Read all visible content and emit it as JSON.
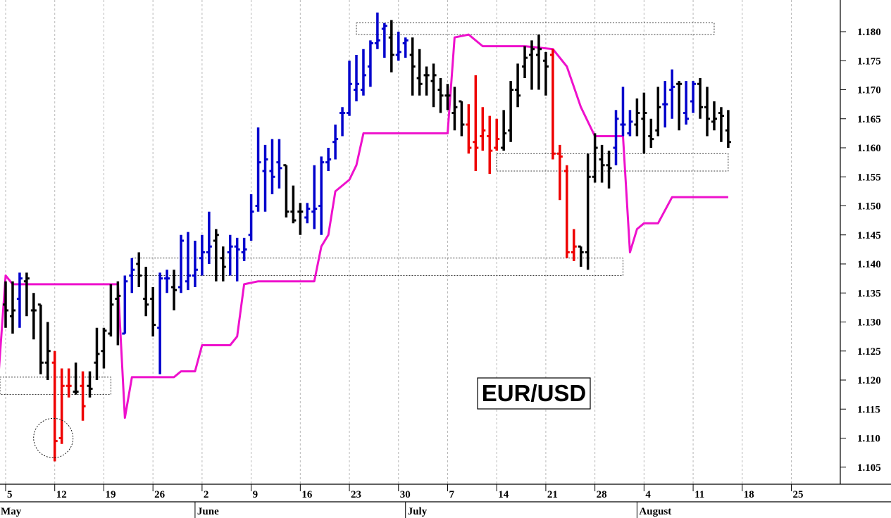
{
  "chart_data": {
    "type": "ohlc-bar",
    "title": "EUR/USD",
    "ylim": [
      1.1015,
      1.1845
    ],
    "y_ticks": [
      1.105,
      1.11,
      1.115,
      1.12,
      1.125,
      1.13,
      1.135,
      1.14,
      1.145,
      1.15,
      1.155,
      1.16,
      1.165,
      1.17,
      1.175,
      1.18
    ],
    "y_tick_labels": [
      "1.105",
      "1.110",
      "1.115",
      "1.120",
      "1.125",
      "1.130",
      "1.135",
      "1.140",
      "1.145",
      "1.150",
      "1.155",
      "1.160",
      "1.165",
      "1.170",
      "1.175",
      "1.180"
    ],
    "x_ticks": [
      {
        "label": "5",
        "day": 0
      },
      {
        "label": "12",
        "day": 7
      },
      {
        "label": "19",
        "day": 14
      },
      {
        "label": "26",
        "day": 21
      },
      {
        "label": "2",
        "day": 28
      },
      {
        "label": "9",
        "day": 35
      },
      {
        "label": "16",
        "day": 42
      },
      {
        "label": "23",
        "day": 49
      },
      {
        "label": "30",
        "day": 56
      },
      {
        "label": "7",
        "day": 63
      },
      {
        "label": "14",
        "day": 70
      },
      {
        "label": "21",
        "day": 77
      },
      {
        "label": "28",
        "day": 84
      },
      {
        "label": "4",
        "day": 91
      },
      {
        "label": "11",
        "day": 98
      },
      {
        "label": "18",
        "day": 105
      },
      {
        "label": "25",
        "day": 112
      }
    ],
    "months": [
      {
        "label": "May",
        "day": -1
      },
      {
        "label": "June",
        "day": 27
      },
      {
        "label": "July",
        "day": 57
      },
      {
        "label": "August",
        "day": 90
      }
    ],
    "colors": {
      "up": "#0000cc",
      "down": "#ee0000",
      "neutral": "#000000",
      "stop_line": "#ee11cc"
    },
    "bars": [
      {
        "day": 0,
        "o": 1.133,
        "h": 1.137,
        "l": 1.129,
        "c": 1.132,
        "color": "neutral"
      },
      {
        "day": 1,
        "o": 1.131,
        "h": 1.137,
        "l": 1.128,
        "c": 1.132,
        "color": "neutral"
      },
      {
        "day": 2,
        "o": 1.134,
        "h": 1.1385,
        "l": 1.129,
        "c": 1.1375,
        "color": "up"
      },
      {
        "day": 3,
        "o": 1.137,
        "h": 1.1385,
        "l": 1.131,
        "c": 1.1375,
        "color": "neutral"
      },
      {
        "day": 4,
        "o": 1.132,
        "h": 1.135,
        "l": 1.127,
        "c": 1.132,
        "color": "neutral"
      },
      {
        "day": 5,
        "o": 1.133,
        "h": 1.133,
        "l": 1.121,
        "c": 1.123,
        "color": "neutral"
      },
      {
        "day": 6,
        "o": 1.123,
        "h": 1.13,
        "l": 1.12,
        "c": 1.125,
        "color": "neutral"
      },
      {
        "day": 7,
        "o": 1.123,
        "h": 1.125,
        "l": 1.106,
        "c": 1.1095,
        "color": "down"
      },
      {
        "day": 8,
        "o": 1.11,
        "h": 1.122,
        "l": 1.109,
        "c": 1.119,
        "color": "down"
      },
      {
        "day": 9,
        "o": 1.119,
        "h": 1.122,
        "l": 1.117,
        "c": 1.119,
        "color": "down"
      },
      {
        "day": 10,
        "o": 1.118,
        "h": 1.123,
        "l": 1.1175,
        "c": 1.118,
        "color": "neutral"
      },
      {
        "day": 11,
        "o": 1.119,
        "h": 1.1215,
        "l": 1.113,
        "c": 1.1155,
        "color": "down"
      },
      {
        "day": 12,
        "o": 1.119,
        "h": 1.1215,
        "l": 1.117,
        "c": 1.1185,
        "color": "neutral"
      },
      {
        "day": 13,
        "o": 1.123,
        "h": 1.129,
        "l": 1.12,
        "c": 1.1245,
        "color": "neutral"
      },
      {
        "day": 14,
        "o": 1.125,
        "h": 1.129,
        "l": 1.122,
        "c": 1.1285,
        "color": "neutral"
      },
      {
        "day": 15,
        "o": 1.128,
        "h": 1.1365,
        "l": 1.1275,
        "c": 1.133,
        "color": "neutral"
      },
      {
        "day": 16,
        "o": 1.134,
        "h": 1.137,
        "l": 1.126,
        "c": 1.1345,
        "color": "neutral"
      },
      {
        "day": 17,
        "o": 1.128,
        "h": 1.138,
        "l": 1.128,
        "c": 1.137,
        "color": "up"
      },
      {
        "day": 18,
        "o": 1.138,
        "h": 1.141,
        "l": 1.135,
        "c": 1.139,
        "color": "up"
      },
      {
        "day": 19,
        "o": 1.14,
        "h": 1.142,
        "l": 1.136,
        "c": 1.138,
        "color": "neutral"
      },
      {
        "day": 20,
        "o": 1.134,
        "h": 1.1395,
        "l": 1.131,
        "c": 1.133,
        "color": "neutral"
      },
      {
        "day": 21,
        "o": 1.134,
        "h": 1.136,
        "l": 1.1275,
        "c": 1.1295,
        "color": "neutral"
      },
      {
        "day": 22,
        "o": 1.129,
        "h": 1.1385,
        "l": 1.121,
        "c": 1.1375,
        "color": "up"
      },
      {
        "day": 23,
        "o": 1.1375,
        "h": 1.139,
        "l": 1.135,
        "c": 1.1375,
        "color": "up"
      },
      {
        "day": 24,
        "o": 1.136,
        "h": 1.139,
        "l": 1.132,
        "c": 1.1355,
        "color": "neutral"
      },
      {
        "day": 25,
        "o": 1.136,
        "h": 1.145,
        "l": 1.135,
        "c": 1.144,
        "color": "up"
      },
      {
        "day": 26,
        "o": 1.137,
        "h": 1.1455,
        "l": 1.1355,
        "c": 1.138,
        "color": "up"
      },
      {
        "day": 27,
        "o": 1.138,
        "h": 1.144,
        "l": 1.136,
        "c": 1.139,
        "color": "up"
      },
      {
        "day": 28,
        "o": 1.141,
        "h": 1.145,
        "l": 1.138,
        "c": 1.142,
        "color": "up"
      },
      {
        "day": 29,
        "o": 1.142,
        "h": 1.149,
        "l": 1.14,
        "c": 1.143,
        "color": "up"
      },
      {
        "day": 30,
        "o": 1.144,
        "h": 1.146,
        "l": 1.137,
        "c": 1.145,
        "color": "neutral"
      },
      {
        "day": 31,
        "o": 1.141,
        "h": 1.143,
        "l": 1.137,
        "c": 1.1395,
        "color": "neutral"
      },
      {
        "day": 32,
        "o": 1.142,
        "h": 1.145,
        "l": 1.138,
        "c": 1.143,
        "color": "up"
      },
      {
        "day": 33,
        "o": 1.143,
        "h": 1.1445,
        "l": 1.137,
        "c": 1.1425,
        "color": "up"
      },
      {
        "day": 34,
        "o": 1.142,
        "h": 1.1445,
        "l": 1.1405,
        "c": 1.1425,
        "color": "up"
      },
      {
        "day": 35,
        "o": 1.145,
        "h": 1.152,
        "l": 1.144,
        "c": 1.149,
        "color": "up"
      },
      {
        "day": 36,
        "o": 1.15,
        "h": 1.1635,
        "l": 1.149,
        "c": 1.1575,
        "color": "up"
      },
      {
        "day": 37,
        "o": 1.156,
        "h": 1.1605,
        "l": 1.149,
        "c": 1.158,
        "color": "up"
      },
      {
        "day": 38,
        "o": 1.156,
        "h": 1.1615,
        "l": 1.152,
        "c": 1.155,
        "color": "up"
      },
      {
        "day": 39,
        "o": 1.1575,
        "h": 1.1615,
        "l": 1.153,
        "c": 1.1565,
        "color": "up"
      },
      {
        "day": 40,
        "o": 1.157,
        "h": 1.157,
        "l": 1.148,
        "c": 1.149,
        "color": "neutral"
      },
      {
        "day": 41,
        "o": 1.149,
        "h": 1.1535,
        "l": 1.147,
        "c": 1.1475,
        "color": "neutral"
      },
      {
        "day": 42,
        "o": 1.149,
        "h": 1.1505,
        "l": 1.145,
        "c": 1.149,
        "color": "neutral"
      },
      {
        "day": 43,
        "o": 1.148,
        "h": 1.1505,
        "l": 1.147,
        "c": 1.1495,
        "color": "up"
      },
      {
        "day": 44,
        "o": 1.149,
        "h": 1.157,
        "l": 1.146,
        "c": 1.1495,
        "color": "up"
      },
      {
        "day": 45,
        "o": 1.15,
        "h": 1.1585,
        "l": 1.145,
        "c": 1.1575,
        "color": "up"
      },
      {
        "day": 46,
        "o": 1.1575,
        "h": 1.16,
        "l": 1.156,
        "c": 1.158,
        "color": "up"
      },
      {
        "day": 47,
        "o": 1.161,
        "h": 1.164,
        "l": 1.158,
        "c": 1.1615,
        "color": "up"
      },
      {
        "day": 48,
        "o": 1.166,
        "h": 1.167,
        "l": 1.162,
        "c": 1.166,
        "color": "up"
      },
      {
        "day": 49,
        "o": 1.166,
        "h": 1.175,
        "l": 1.1655,
        "c": 1.171,
        "color": "up"
      },
      {
        "day": 50,
        "o": 1.17,
        "h": 1.176,
        "l": 1.168,
        "c": 1.171,
        "color": "up"
      },
      {
        "day": 51,
        "o": 1.17,
        "h": 1.177,
        "l": 1.169,
        "c": 1.1725,
        "color": "up"
      },
      {
        "day": 52,
        "o": 1.174,
        "h": 1.1785,
        "l": 1.1705,
        "c": 1.178,
        "color": "up"
      },
      {
        "day": 53,
        "o": 1.178,
        "h": 1.1833,
        "l": 1.177,
        "c": 1.1785,
        "color": "up"
      },
      {
        "day": 54,
        "o": 1.1805,
        "h": 1.1815,
        "l": 1.1755,
        "c": 1.181,
        "color": "up"
      },
      {
        "day": 55,
        "o": 1.179,
        "h": 1.182,
        "l": 1.173,
        "c": 1.176,
        "color": "neutral"
      },
      {
        "day": 56,
        "o": 1.176,
        "h": 1.18,
        "l": 1.175,
        "c": 1.1765,
        "color": "up"
      },
      {
        "day": 57,
        "o": 1.178,
        "h": 1.179,
        "l": 1.1755,
        "c": 1.1785,
        "color": "up"
      },
      {
        "day": 58,
        "o": 1.176,
        "h": 1.179,
        "l": 1.169,
        "c": 1.174,
        "color": "neutral"
      },
      {
        "day": 59,
        "o": 1.172,
        "h": 1.177,
        "l": 1.169,
        "c": 1.171,
        "color": "neutral"
      },
      {
        "day": 60,
        "o": 1.1725,
        "h": 1.174,
        "l": 1.169,
        "c": 1.1725,
        "color": "neutral"
      },
      {
        "day": 61,
        "o": 1.1715,
        "h": 1.1745,
        "l": 1.167,
        "c": 1.1725,
        "color": "neutral"
      },
      {
        "day": 62,
        "o": 1.17,
        "h": 1.172,
        "l": 1.166,
        "c": 1.169,
        "color": "neutral"
      },
      {
        "day": 63,
        "o": 1.169,
        "h": 1.171,
        "l": 1.1665,
        "c": 1.169,
        "color": "neutral"
      },
      {
        "day": 64,
        "o": 1.166,
        "h": 1.1705,
        "l": 1.163,
        "c": 1.167,
        "color": "neutral"
      },
      {
        "day": 65,
        "o": 1.168,
        "h": 1.168,
        "l": 1.162,
        "c": 1.164,
        "color": "neutral"
      },
      {
        "day": 66,
        "o": 1.164,
        "h": 1.1675,
        "l": 1.159,
        "c": 1.16,
        "color": "down"
      },
      {
        "day": 67,
        "o": 1.161,
        "h": 1.1725,
        "l": 1.156,
        "c": 1.16,
        "color": "down"
      },
      {
        "day": 68,
        "o": 1.162,
        "h": 1.167,
        "l": 1.1595,
        "c": 1.163,
        "color": "down"
      },
      {
        "day": 69,
        "o": 1.162,
        "h": 1.1655,
        "l": 1.1555,
        "c": 1.1595,
        "color": "down"
      },
      {
        "day": 70,
        "o": 1.16,
        "h": 1.165,
        "l": 1.1595,
        "c": 1.1615,
        "color": "down"
      },
      {
        "day": 71,
        "o": 1.16,
        "h": 1.1665,
        "l": 1.1595,
        "c": 1.1625,
        "color": "neutral"
      },
      {
        "day": 72,
        "o": 1.163,
        "h": 1.1715,
        "l": 1.161,
        "c": 1.17,
        "color": "neutral"
      },
      {
        "day": 73,
        "o": 1.17,
        "h": 1.1745,
        "l": 1.167,
        "c": 1.169,
        "color": "neutral"
      },
      {
        "day": 74,
        "o": 1.174,
        "h": 1.1775,
        "l": 1.172,
        "c": 1.1755,
        "color": "neutral"
      },
      {
        "day": 75,
        "o": 1.176,
        "h": 1.1785,
        "l": 1.17,
        "c": 1.177,
        "color": "neutral"
      },
      {
        "day": 76,
        "o": 1.176,
        "h": 1.1795,
        "l": 1.17,
        "c": 1.177,
        "color": "neutral"
      },
      {
        "day": 77,
        "o": 1.175,
        "h": 1.1765,
        "l": 1.169,
        "c": 1.174,
        "color": "neutral"
      },
      {
        "day": 78,
        "o": 1.176,
        "h": 1.177,
        "l": 1.158,
        "c": 1.159,
        "color": "down"
      },
      {
        "day": 79,
        "o": 1.159,
        "h": 1.1605,
        "l": 1.151,
        "c": 1.1585,
        "color": "down"
      },
      {
        "day": 80,
        "o": 1.156,
        "h": 1.157,
        "l": 1.141,
        "c": 1.142,
        "color": "down"
      },
      {
        "day": 81,
        "o": 1.142,
        "h": 1.146,
        "l": 1.1405,
        "c": 1.143,
        "color": "down"
      },
      {
        "day": 82,
        "o": 1.143,
        "h": 1.143,
        "l": 1.1395,
        "c": 1.142,
        "color": "neutral"
      },
      {
        "day": 83,
        "o": 1.142,
        "h": 1.159,
        "l": 1.139,
        "c": 1.155,
        "color": "neutral"
      },
      {
        "day": 84,
        "o": 1.155,
        "h": 1.1625,
        "l": 1.154,
        "c": 1.16,
        "color": "neutral"
      },
      {
        "day": 85,
        "o": 1.158,
        "h": 1.1605,
        "l": 1.154,
        "c": 1.157,
        "color": "neutral"
      },
      {
        "day": 86,
        "o": 1.157,
        "h": 1.1595,
        "l": 1.153,
        "c": 1.1565,
        "color": "neutral"
      },
      {
        "day": 87,
        "o": 1.16,
        "h": 1.1665,
        "l": 1.157,
        "c": 1.165,
        "color": "up"
      },
      {
        "day": 88,
        "o": 1.164,
        "h": 1.1705,
        "l": 1.162,
        "c": 1.164,
        "color": "up"
      },
      {
        "day": 89,
        "o": 1.1625,
        "h": 1.1665,
        "l": 1.162,
        "c": 1.1645,
        "color": "up"
      },
      {
        "day": 90,
        "o": 1.164,
        "h": 1.1685,
        "l": 1.162,
        "c": 1.166,
        "color": "neutral"
      },
      {
        "day": 91,
        "o": 1.165,
        "h": 1.1695,
        "l": 1.159,
        "c": 1.166,
        "color": "neutral"
      },
      {
        "day": 92,
        "o": 1.162,
        "h": 1.165,
        "l": 1.16,
        "c": 1.1615,
        "color": "neutral"
      },
      {
        "day": 93,
        "o": 1.163,
        "h": 1.1705,
        "l": 1.162,
        "c": 1.167,
        "color": "neutral"
      },
      {
        "day": 94,
        "o": 1.1675,
        "h": 1.1715,
        "l": 1.1635,
        "c": 1.1675,
        "color": "up"
      },
      {
        "day": 95,
        "o": 1.17,
        "h": 1.1735,
        "l": 1.165,
        "c": 1.1705,
        "color": "up"
      },
      {
        "day": 96,
        "o": 1.171,
        "h": 1.1715,
        "l": 1.163,
        "c": 1.171,
        "color": "neutral"
      },
      {
        "day": 97,
        "o": 1.166,
        "h": 1.1715,
        "l": 1.164,
        "c": 1.165,
        "color": "up"
      },
      {
        "day": 98,
        "o": 1.168,
        "h": 1.1715,
        "l": 1.166,
        "c": 1.171,
        "color": "up"
      },
      {
        "day": 99,
        "o": 1.171,
        "h": 1.172,
        "l": 1.165,
        "c": 1.167,
        "color": "neutral"
      },
      {
        "day": 100,
        "o": 1.167,
        "h": 1.1705,
        "l": 1.162,
        "c": 1.165,
        "color": "neutral"
      },
      {
        "day": 101,
        "o": 1.1645,
        "h": 1.168,
        "l": 1.163,
        "c": 1.165,
        "color": "neutral"
      },
      {
        "day": 102,
        "o": 1.166,
        "h": 1.167,
        "l": 1.161,
        "c": 1.1655,
        "color": "neutral"
      },
      {
        "day": 103,
        "o": 1.163,
        "h": 1.1665,
        "l": 1.16,
        "c": 1.161,
        "color": "neutral"
      }
    ],
    "stop_line": [
      [
        -8,
        1.121
      ],
      [
        -1,
        1.121
      ],
      [
        0,
        1.138
      ],
      [
        1,
        1.1365
      ],
      [
        7,
        1.1365
      ],
      [
        16,
        1.1365
      ],
      [
        17,
        1.1135
      ],
      [
        18,
        1.1205
      ],
      [
        22,
        1.1205
      ],
      [
        24,
        1.1205
      ],
      [
        25,
        1.1215
      ],
      [
        27,
        1.1215
      ],
      [
        28,
        1.126
      ],
      [
        32,
        1.126
      ],
      [
        33,
        1.1275
      ],
      [
        34,
        1.1365
      ],
      [
        36,
        1.137
      ],
      [
        44,
        1.137
      ],
      [
        45,
        1.143
      ],
      [
        46,
        1.145
      ],
      [
        47,
        1.1525
      ],
      [
        49,
        1.1545
      ],
      [
        50,
        1.157
      ],
      [
        51,
        1.1625
      ],
      [
        54,
        1.1625
      ],
      [
        63,
        1.1625
      ],
      [
        64,
        1.179
      ],
      [
        66,
        1.1795
      ],
      [
        67,
        1.1785
      ],
      [
        68,
        1.1775
      ],
      [
        74,
        1.1775
      ],
      [
        78,
        1.177
      ],
      [
        80,
        1.174
      ],
      [
        82,
        1.167
      ],
      [
        84,
        1.162
      ],
      [
        88,
        1.162
      ],
      [
        89,
        1.142
      ],
      [
        90,
        1.146
      ],
      [
        91,
        1.147
      ],
      [
        93,
        1.147
      ],
      [
        95,
        1.1515
      ],
      [
        103,
        1.1515
      ]
    ],
    "zones": [
      {
        "day_from": -8,
        "day_to": 15,
        "y_top": 1.1205,
        "y_bottom": 1.1175
      },
      {
        "day_from": 18,
        "day_to": 88,
        "y_top": 1.141,
        "y_bottom": 1.138
      },
      {
        "day_from": 50,
        "day_to": 101,
        "y_top": 1.1815,
        "y_bottom": 1.1795
      },
      {
        "day_from": 70,
        "day_to": 103,
        "y_top": 1.159,
        "y_bottom": 1.156
      }
    ],
    "highlight": {
      "day": 7,
      "y": 1.1105,
      "note": "dotted circle at swing low"
    }
  }
}
